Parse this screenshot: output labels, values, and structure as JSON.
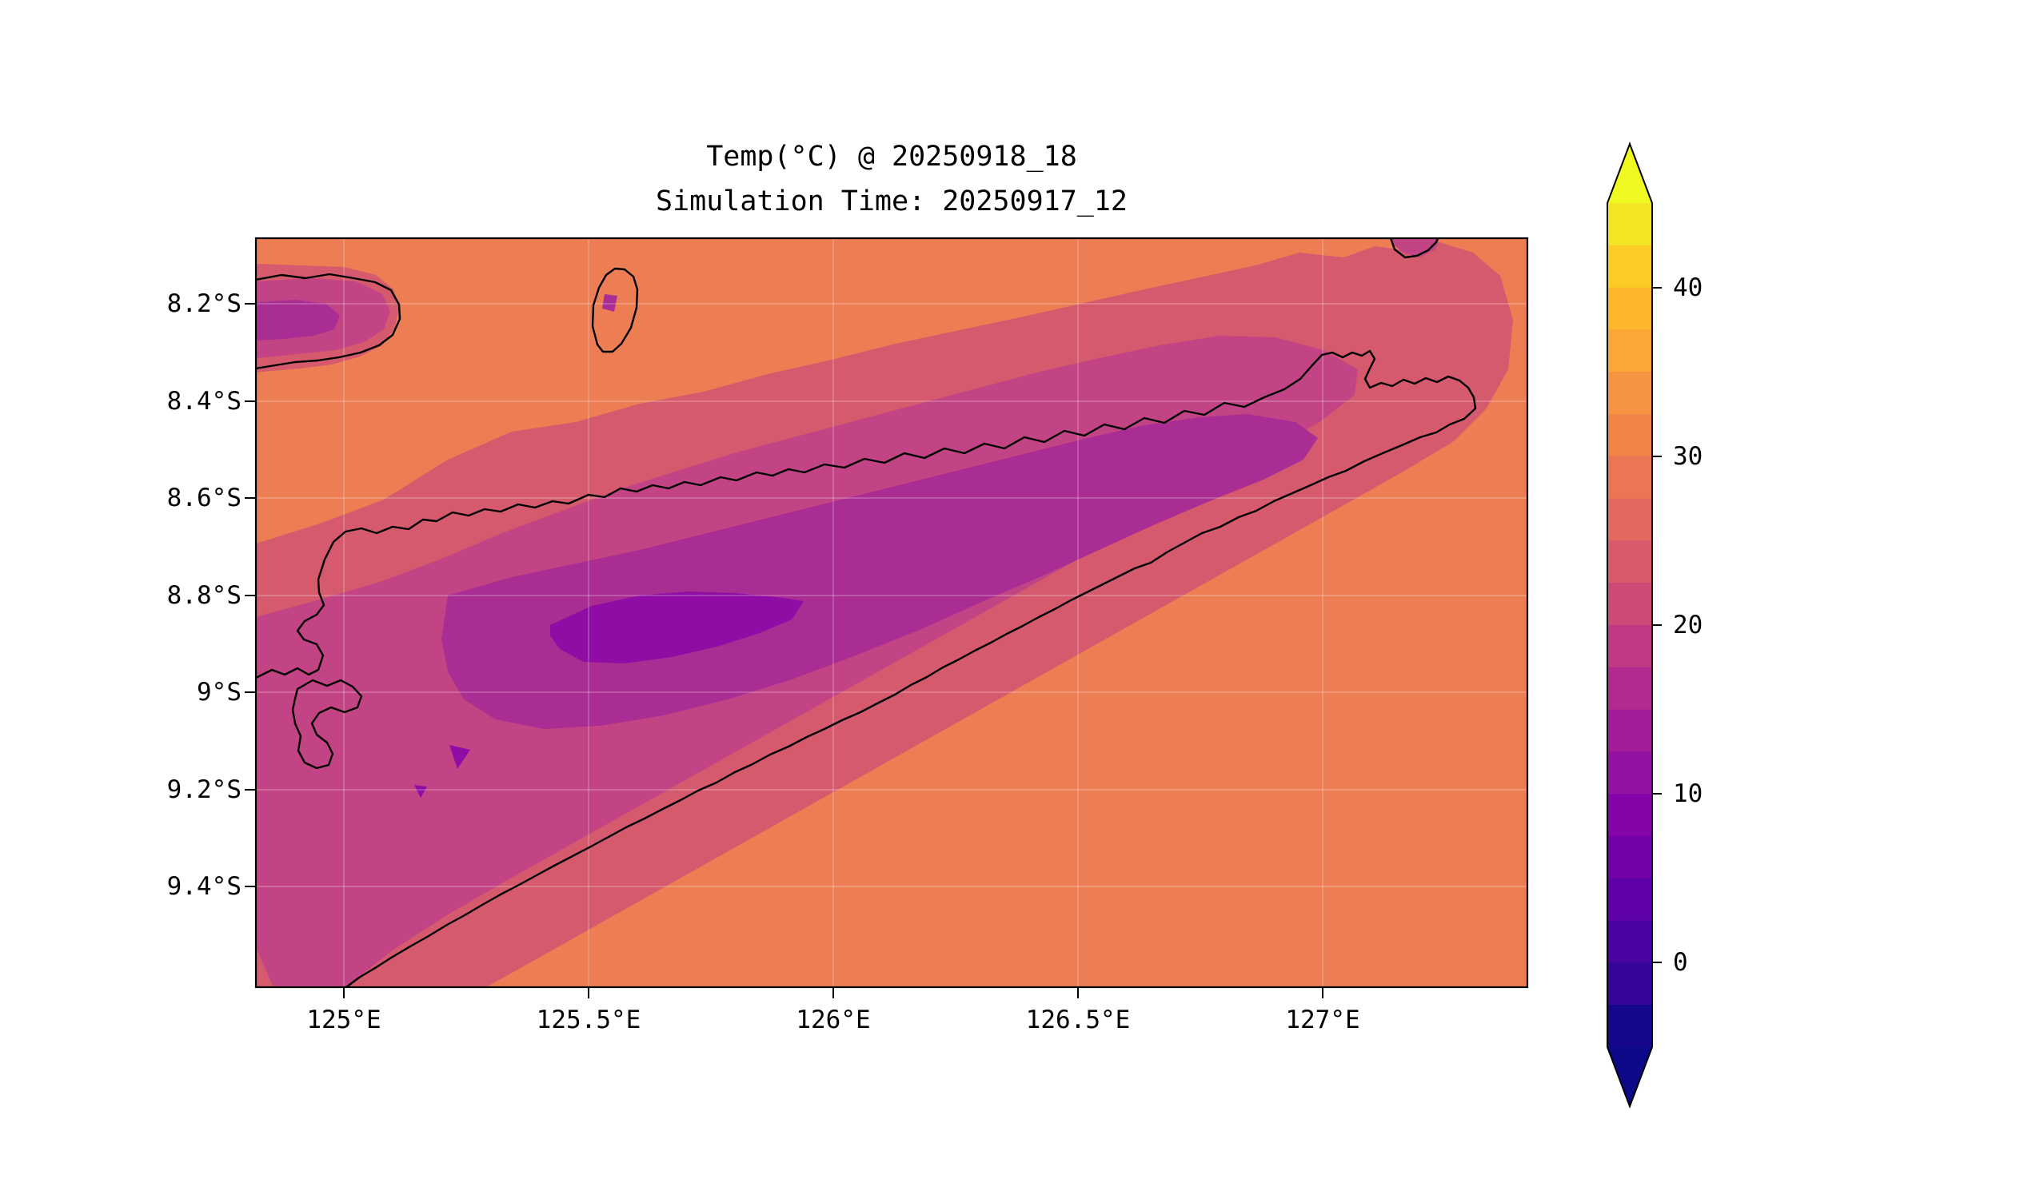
{
  "figure": {
    "title": "Temp(°C) @ 20250918_18",
    "subtitle": "Simulation Time: 20250917_12"
  },
  "axes": {
    "y_ticks": [
      "8.2°S",
      "8.4°S",
      "8.6°S",
      "8.8°S",
      "9°S",
      "9.2°S",
      "9.4°S"
    ],
    "x_ticks": [
      "125°E",
      "125.5°E",
      "126°E",
      "126.5°E",
      "127°E"
    ]
  },
  "colorbar": {
    "tick_labels": [
      "40",
      "30",
      "20",
      "10",
      "0"
    ],
    "range_min": -5,
    "range_max": 45,
    "extend": "both",
    "over_color": "#f0f921",
    "under_color": "#0d0887",
    "colors": [
      "#f4e625",
      "#fccb26",
      "#fdb72d",
      "#fba636",
      "#f79441",
      "#f18448",
      "#eb7655",
      "#e2695e",
      "#d85a6a",
      "#cd4a76",
      "#c03a83",
      "#b02a8f",
      "#a41c9a",
      "#9511a1",
      "#8405a7",
      "#7201a8",
      "#5e01a6",
      "#4a02a0",
      "#340597",
      "#15078a"
    ]
  },
  "map_colors": {
    "background": "#ed7d53",
    "band_rose": "#d55a6d",
    "band_magenta": "#c24485",
    "band_purple_magenta": "#aa2d94",
    "band_purple": "#8f0da4",
    "coastline": "#000000"
  },
  "chart_data": {
    "type": "heatmap",
    "subtype": "filled_contour_map",
    "title": "Temp(°C) @ 20250918_18",
    "subtitle": "Simulation Time: 20250917_12",
    "xlabel": "",
    "ylabel": "",
    "xlim": [
      124.83,
      127.42
    ],
    "ylim": [
      9.61,
      8.07
    ],
    "x_tick_values": [
      125,
      125.5,
      126,
      126.5,
      127
    ],
    "y_tick_values": [
      8.2,
      8.4,
      8.6,
      8.8,
      9.0,
      9.2,
      9.4
    ],
    "colormap": "plasma",
    "colorbar_range": [
      -5,
      45
    ],
    "colorbar_ticks": [
      0,
      10,
      20,
      30,
      40
    ],
    "contour_interval_degC": 2.5,
    "extend": "both",
    "grid": true,
    "legend_position": "none",
    "overlay": "black coastline contours of Timor island, Atauro island and southern tip of Wetar",
    "lons_degE": [
      125,
      125.5,
      126,
      126.5,
      127
    ],
    "lats_degS": [
      8.2,
      8.4,
      8.6,
      8.8,
      9.0,
      9.2,
      9.4
    ],
    "values_degC": [
      [
        21,
        28,
        28,
        28,
        28
      ],
      [
        26,
        28,
        28,
        28,
        27
      ],
      [
        24,
        21,
        20,
        17,
        25
      ],
      [
        22,
        11,
        14,
        17,
        26
      ],
      [
        20,
        17,
        19,
        24,
        28
      ],
      [
        19,
        22,
        25,
        28,
        28
      ],
      [
        23,
        27,
        28,
        28,
        28
      ]
    ],
    "notes": "Sea/background ~28°C (orange); island interior bands ~22.5, ~17.5, ~12.5°C; cold core ~10°C near 125.5°E 8.85°S"
  }
}
